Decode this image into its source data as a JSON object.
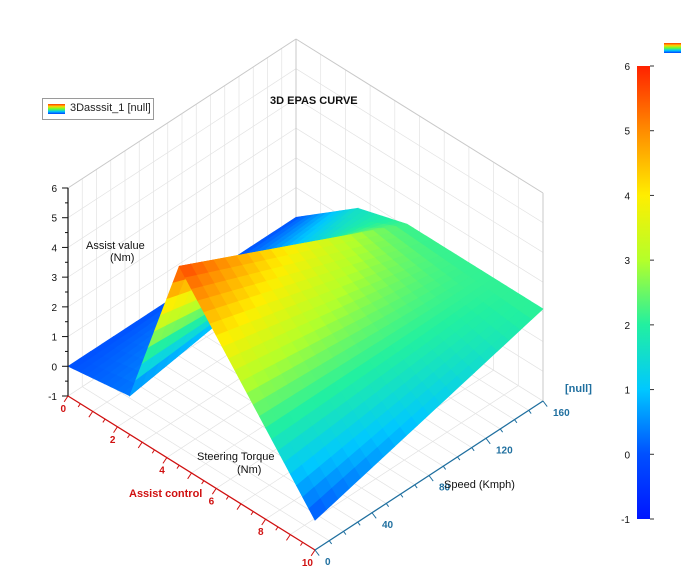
{
  "chart_data": {
    "type": "surface3d",
    "title": "3D EPAS CURVE",
    "legend": {
      "label": "3Dasssit_1 [null]",
      "position": "top-left"
    },
    "x_axis": {
      "name": "Assist control",
      "label_line1": "Steering Torque",
      "label_line2": "(Nm)",
      "range": [
        0,
        10
      ],
      "ticks": [
        0,
        2,
        4,
        6,
        8,
        10
      ],
      "color": "#d01010"
    },
    "y_axis": {
      "label": "Speed (Kmph)",
      "range": [
        0,
        160
      ],
      "ticks": [
        0,
        40,
        80,
        120,
        160
      ],
      "unit_label": "[null]",
      "color": "#1f6f9f"
    },
    "z_axis": {
      "label_line1": "Assist value",
      "label_line2": "(Nm)",
      "range": [
        -1,
        6
      ],
      "ticks": [
        -1,
        0,
        1,
        2,
        3,
        4,
        5,
        6
      ]
    },
    "colorbar": {
      "range": [
        -1,
        6
      ],
      "ticks": [
        6,
        5,
        4,
        3,
        2,
        1,
        0,
        -1
      ]
    },
    "surface": {
      "torque": [
        0,
        2.5,
        4.5,
        10
      ],
      "speed": [
        0,
        160
      ],
      "assist": [
        [
          0,
          0
        ],
        [
          0.3,
          1.6
        ],
        [
          5.7,
          2.1
        ],
        [
          0,
          2.1
        ]
      ]
    },
    "grid": true
  }
}
